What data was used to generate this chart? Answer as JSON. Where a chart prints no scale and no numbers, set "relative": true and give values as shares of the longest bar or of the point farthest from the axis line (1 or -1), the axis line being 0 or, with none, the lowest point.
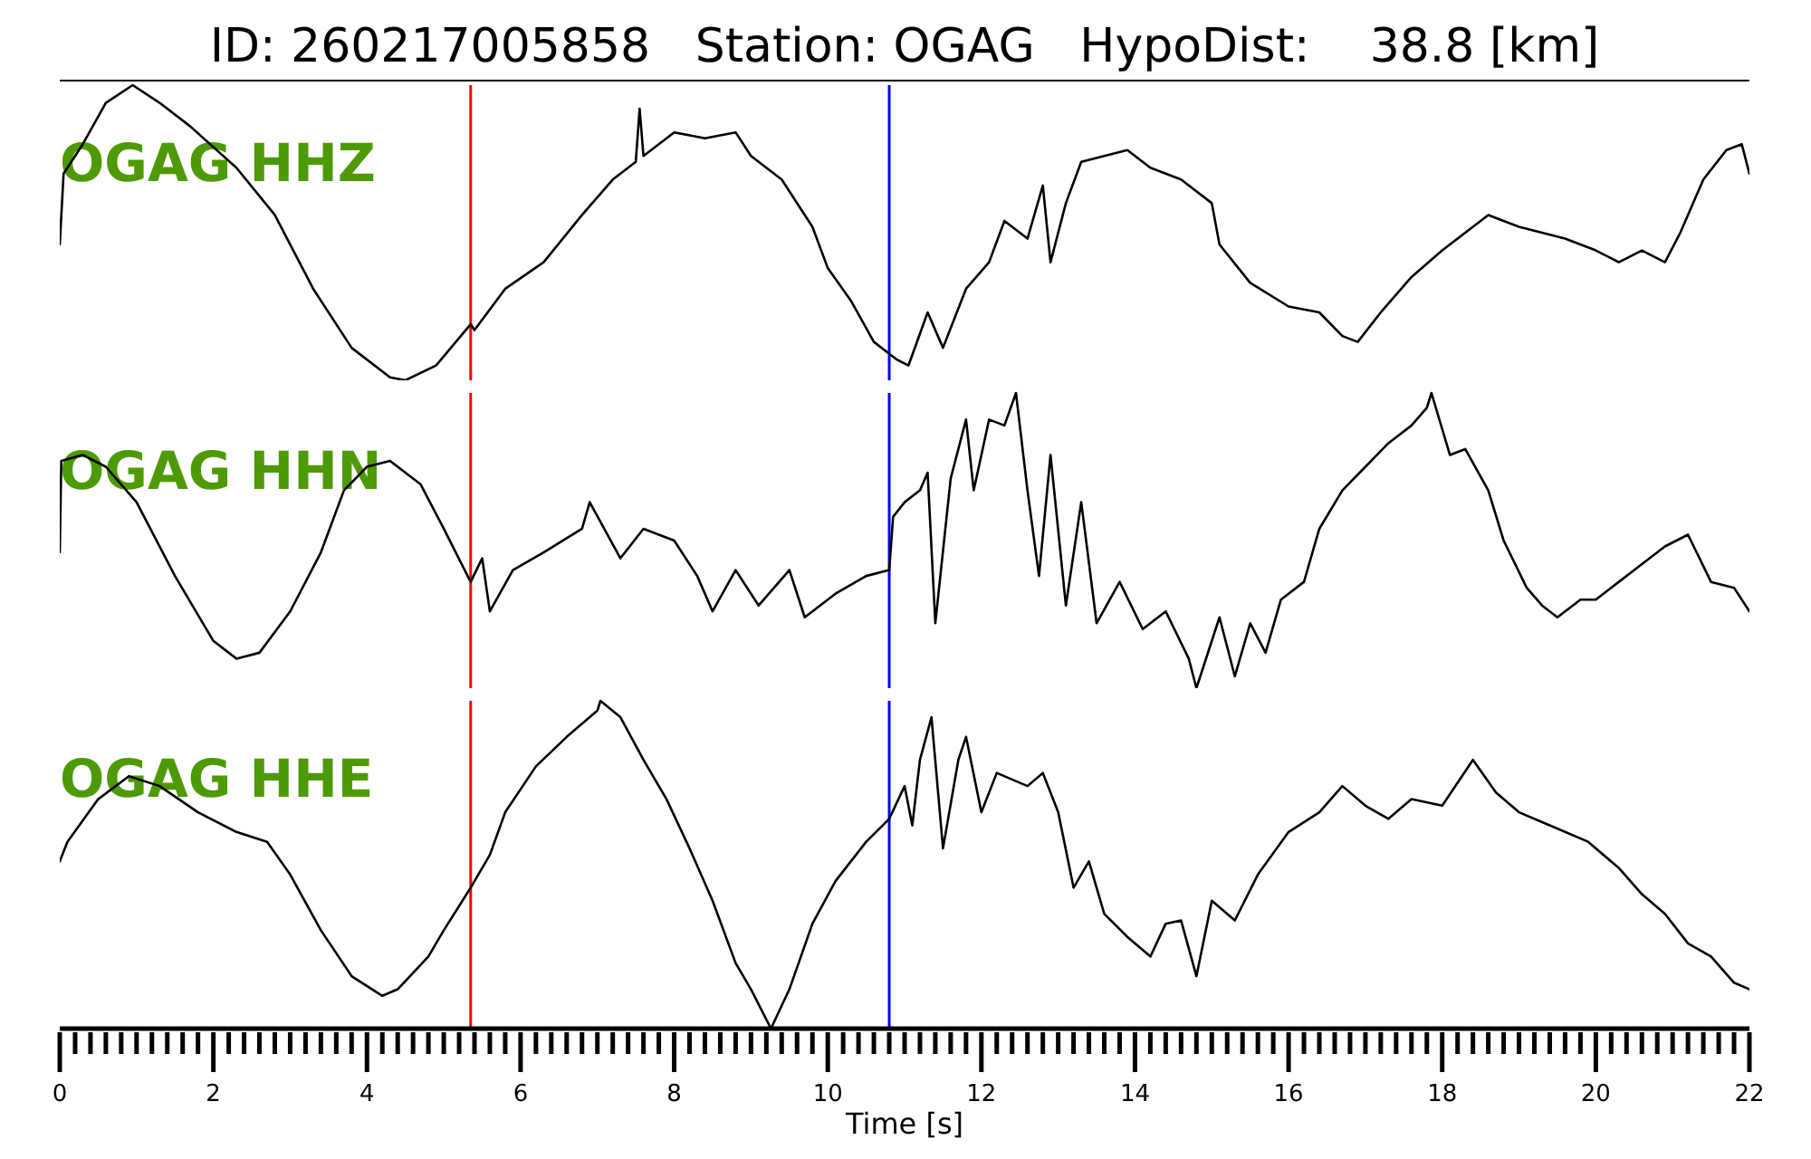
{
  "chart_data": [
    {
      "type": "line",
      "title": "ID: 260217005858   Station: OGAG   HypoDist:    38.8 [km]",
      "relative": true,
      "xlim": [
        0,
        22
      ],
      "tick_labels": false,
      "marker": "none",
      "line_style": "solid",
      "ref_lines": [
        {
          "axis": "x",
          "value": 5.35,
          "color": "#ff0000"
        },
        {
          "axis": "x",
          "value": 10.8,
          "color": "#0000ff"
        }
      ],
      "series": [
        {
          "name": "OGAG HHZ",
          "color": "#000000",
          "x": [
            0,
            0.05,
            0.3,
            0.6,
            0.95,
            1.3,
            1.7,
            2.3,
            2.8,
            3.3,
            3.8,
            4.3,
            4.5,
            4.9,
            5.35,
            5.4,
            5.8,
            6.3,
            6.8,
            7.2,
            7.5,
            7.55,
            7.6,
            8.0,
            8.4,
            8.8,
            9.0,
            9.4,
            9.8,
            10.0,
            10.3,
            10.6,
            10.9,
            11.05,
            11.3,
            11.5,
            11.8,
            12.1,
            12.3,
            12.6,
            12.8,
            12.9,
            13.1,
            13.3,
            13.6,
            13.9,
            14.2,
            14.6,
            15.0,
            15.1,
            15.5,
            16.0,
            16.4,
            16.7,
            16.9,
            17.2,
            17.6,
            18.0,
            18.4,
            18.6,
            19.0,
            19.6,
            20.0,
            20.3,
            20.6,
            20.9,
            21.1,
            21.4,
            21.7,
            21.9,
            22.0
          ],
          "values": [
            0.46,
            0.7,
            0.8,
            0.94,
            1.0,
            0.94,
            0.86,
            0.72,
            0.56,
            0.31,
            0.11,
            0.01,
            0,
            0.05,
            0.19,
            0.17,
            0.31,
            0.4,
            0.56,
            0.68,
            0.74,
            0.92,
            0.76,
            0.84,
            0.82,
            0.84,
            0.76,
            0.68,
            0.52,
            0.38,
            0.27,
            0.13,
            0.07,
            0.05,
            0.23,
            0.11,
            0.31,
            0.4,
            0.54,
            0.48,
            0.66,
            0.4,
            0.6,
            0.74,
            0.76,
            0.78,
            0.72,
            0.68,
            0.6,
            0.46,
            0.33,
            0.25,
            0.23,
            0.15,
            0.13,
            0.23,
            0.35,
            0.44,
            0.52,
            0.56,
            0.52,
            0.48,
            0.44,
            0.4,
            0.44,
            0.4,
            0.5,
            0.68,
            0.78,
            0.8,
            0.7
          ]
        }
      ]
    },
    {
      "type": "line",
      "relative": true,
      "xlim": [
        0,
        22
      ],
      "tick_labels": false,
      "marker": "none",
      "line_style": "solid",
      "ref_lines": [
        {
          "axis": "x",
          "value": 5.35,
          "color": "#ff0000"
        },
        {
          "axis": "x",
          "value": 10.8,
          "color": "#0000ff"
        }
      ],
      "series": [
        {
          "name": "OGAG HHN",
          "color": "#000000",
          "x": [
            0,
            0.02,
            0.3,
            0.6,
            1.0,
            1.5,
            2.0,
            2.3,
            2.6,
            3.0,
            3.4,
            3.7,
            4.0,
            4.3,
            4.7,
            5.0,
            5.35,
            5.5,
            5.6,
            5.9,
            6.3,
            6.8,
            6.9,
            7.3,
            7.6,
            8.0,
            8.3,
            8.5,
            8.8,
            9.1,
            9.5,
            9.7,
            10.1,
            10.5,
            10.8,
            10.85,
            11.0,
            11.2,
            11.3,
            11.4,
            11.6,
            11.8,
            11.9,
            12.1,
            12.3,
            12.45,
            12.6,
            12.75,
            12.9,
            13.1,
            13.3,
            13.5,
            13.8,
            14.1,
            14.4,
            14.7,
            14.8,
            15.1,
            15.3,
            15.5,
            15.7,
            15.9,
            16.2,
            16.4,
            16.7,
            17.0,
            17.3,
            17.6,
            17.8,
            17.86,
            18.1,
            18.3,
            18.6,
            18.8,
            19.1,
            19.3,
            19.5,
            19.8,
            20.0,
            20.3,
            20.6,
            20.9,
            21.2,
            21.5,
            21.8,
            22.0
          ],
          "values": [
            0.46,
            0.77,
            0.79,
            0.75,
            0.63,
            0.38,
            0.16,
            0.1,
            0.12,
            0.26,
            0.46,
            0.67,
            0.75,
            0.77,
            0.69,
            0.54,
            0.36,
            0.44,
            0.26,
            0.4,
            0.46,
            0.54,
            0.63,
            0.44,
            0.54,
            0.5,
            0.38,
            0.26,
            0.4,
            0.28,
            0.4,
            0.24,
            0.32,
            0.38,
            0.4,
            0.58,
            0.63,
            0.67,
            0.73,
            0.22,
            0.71,
            0.91,
            0.67,
            0.91,
            0.89,
            1.0,
            0.67,
            0.38,
            0.79,
            0.28,
            0.63,
            0.22,
            0.36,
            0.2,
            0.26,
            0.1,
            0,
            0.24,
            0.04,
            0.22,
            0.12,
            0.3,
            0.36,
            0.54,
            0.67,
            0.75,
            0.83,
            0.89,
            0.95,
            1.0,
            0.79,
            0.81,
            0.67,
            0.5,
            0.34,
            0.28,
            0.24,
            0.3,
            0.3,
            0.36,
            0.42,
            0.48,
            0.52,
            0.36,
            0.34,
            0.26
          ]
        }
      ]
    },
    {
      "type": "line",
      "relative": true,
      "xlim": [
        0,
        22
      ],
      "tick_labels": "x",
      "xlabel": "Time [s]",
      "marker": "none",
      "line_style": "solid",
      "xticks": [
        0,
        {
          "value": 0.2,
          "label": null
        },
        {
          "value": 0.4,
          "label": null
        },
        {
          "value": 0.6,
          "label": null
        },
        {
          "value": 0.8,
          "label": null
        },
        {
          "value": 1,
          "label": null
        },
        {
          "value": 1.2,
          "label": null
        },
        {
          "value": 1.4,
          "label": null
        },
        {
          "value": 1.6,
          "label": null
        },
        {
          "value": 1.8,
          "label": null
        },
        2,
        {
          "value": 2.2,
          "label": null
        },
        {
          "value": 2.4,
          "label": null
        },
        {
          "value": 2.6,
          "label": null
        },
        {
          "value": 2.8,
          "label": null
        },
        {
          "value": 3,
          "label": null
        },
        {
          "value": 3.2,
          "label": null
        },
        {
          "value": 3.4,
          "label": null
        },
        {
          "value": 3.6,
          "label": null
        },
        {
          "value": 3.8,
          "label": null
        },
        4,
        {
          "value": 4.2,
          "label": null
        },
        {
          "value": 4.4,
          "label": null
        },
        {
          "value": 4.6,
          "label": null
        },
        {
          "value": 4.8,
          "label": null
        },
        {
          "value": 5,
          "label": null
        },
        {
          "value": 5.2,
          "label": null
        },
        {
          "value": 5.4,
          "label": null
        },
        {
          "value": 5.6,
          "label": null
        },
        {
          "value": 5.8,
          "label": null
        },
        6,
        {
          "value": 6.2,
          "label": null
        },
        {
          "value": 6.4,
          "label": null
        },
        {
          "value": 6.6,
          "label": null
        },
        {
          "value": 6.8,
          "label": null
        },
        {
          "value": 7,
          "label": null
        },
        {
          "value": 7.2,
          "label": null
        },
        {
          "value": 7.4,
          "label": null
        },
        {
          "value": 7.6,
          "label": null
        },
        {
          "value": 7.8,
          "label": null
        },
        8,
        {
          "value": 8.2,
          "label": null
        },
        {
          "value": 8.4,
          "label": null
        },
        {
          "value": 8.6,
          "label": null
        },
        {
          "value": 8.8,
          "label": null
        },
        {
          "value": 9,
          "label": null
        },
        {
          "value": 9.2,
          "label": null
        },
        {
          "value": 9.4,
          "label": null
        },
        {
          "value": 9.6,
          "label": null
        },
        {
          "value": 9.8,
          "label": null
        },
        10,
        {
          "value": 10.2,
          "label": null
        },
        {
          "value": 10.4,
          "label": null
        },
        {
          "value": 10.6,
          "label": null
        },
        {
          "value": 10.8,
          "label": null
        },
        {
          "value": 11,
          "label": null
        },
        {
          "value": 11.2,
          "label": null
        },
        {
          "value": 11.4,
          "label": null
        },
        {
          "value": 11.6,
          "label": null
        },
        {
          "value": 11.8,
          "label": null
        },
        12,
        {
          "value": 12.2,
          "label": null
        },
        {
          "value": 12.4,
          "label": null
        },
        {
          "value": 12.6,
          "label": null
        },
        {
          "value": 12.8,
          "label": null
        },
        {
          "value": 13,
          "label": null
        },
        {
          "value": 13.2,
          "label": null
        },
        {
          "value": 13.4,
          "label": null
        },
        {
          "value": 13.6,
          "label": null
        },
        {
          "value": 13.8,
          "label": null
        },
        14,
        {
          "value": 14.2,
          "label": null
        },
        {
          "value": 14.4,
          "label": null
        },
        {
          "value": 14.6,
          "label": null
        },
        {
          "value": 14.8,
          "label": null
        },
        {
          "value": 15,
          "label": null
        },
        {
          "value": 15.2,
          "label": null
        },
        {
          "value": 15.4,
          "label": null
        },
        {
          "value": 15.6,
          "label": null
        },
        {
          "value": 15.8,
          "label": null
        },
        16,
        {
          "value": 16.2,
          "label": null
        },
        {
          "value": 16.4,
          "label": null
        },
        {
          "value": 16.6,
          "label": null
        },
        {
          "value": 16.8,
          "label": null
        },
        {
          "value": 17,
          "label": null
        },
        {
          "value": 17.2,
          "label": null
        },
        {
          "value": 17.4,
          "label": null
        },
        {
          "value": 17.6,
          "label": null
        },
        {
          "value": 17.8,
          "label": null
        },
        18,
        {
          "value": 18.2,
          "label": null
        },
        {
          "value": 18.4,
          "label": null
        },
        {
          "value": 18.6,
          "label": null
        },
        {
          "value": 18.8,
          "label": null
        },
        {
          "value": 19,
          "label": null
        },
        {
          "value": 19.2,
          "label": null
        },
        {
          "value": 19.4,
          "label": null
        },
        {
          "value": 19.6,
          "label": null
        },
        {
          "value": 19.8,
          "label": null
        },
        20,
        {
          "value": 20.2,
          "label": null
        },
        {
          "value": 20.4,
          "label": null
        },
        {
          "value": 20.6,
          "label": null
        },
        {
          "value": 20.8,
          "label": null
        },
        {
          "value": 21,
          "label": null
        },
        {
          "value": 21.2,
          "label": null
        },
        {
          "value": 21.4,
          "label": null
        },
        {
          "value": 21.6,
          "label": null
        },
        {
          "value": 21.8,
          "label": null
        },
        22
      ],
      "ref_lines": [
        {
          "axis": "x",
          "value": 5.35,
          "color": "#ff0000"
        },
        {
          "axis": "x",
          "value": 10.8,
          "color": "#0000ff"
        }
      ],
      "series": [
        {
          "name": "OGAG HHE",
          "color": "#000000",
          "x": [
            0,
            0.1,
            0.5,
            0.9,
            1.3,
            1.8,
            2.3,
            2.7,
            3.0,
            3.4,
            3.8,
            4.2,
            4.4,
            4.8,
            5.0,
            5.35,
            5.6,
            5.8,
            6.2,
            6.6,
            7.0,
            7.04,
            7.3,
            7.6,
            7.9,
            8.2,
            8.5,
            8.8,
            9.0,
            9.26,
            9.5,
            9.8,
            10.1,
            10.5,
            10.8,
            11.0,
            11.1,
            11.2,
            11.35,
            11.5,
            11.7,
            11.8,
            12.0,
            12.2,
            12.6,
            12.8,
            13.0,
            13.2,
            13.4,
            13.6,
            13.9,
            14.2,
            14.4,
            14.6,
            14.8,
            15.0,
            15.3,
            15.6,
            16.0,
            16.4,
            16.7,
            17.0,
            17.3,
            17.6,
            18.0,
            18.4,
            18.7,
            19.0,
            19.4,
            19.9,
            20.3,
            20.6,
            20.9,
            21.2,
            21.5,
            21.8,
            22.0
          ],
          "values": [
            0.51,
            0.57,
            0.7,
            0.77,
            0.74,
            0.66,
            0.6,
            0.57,
            0.47,
            0.3,
            0.16,
            0.1,
            0.12,
            0.22,
            0.3,
            0.43,
            0.53,
            0.66,
            0.8,
            0.89,
            0.97,
            1.0,
            0.95,
            0.82,
            0.7,
            0.55,
            0.39,
            0.2,
            0.12,
            0,
            0.12,
            0.32,
            0.45,
            0.57,
            0.64,
            0.74,
            0.62,
            0.82,
            0.95,
            0.55,
            0.82,
            0.89,
            0.66,
            0.78,
            0.74,
            0.78,
            0.66,
            0.43,
            0.51,
            0.35,
            0.28,
            0.22,
            0.32,
            0.33,
            0.16,
            0.39,
            0.33,
            0.47,
            0.6,
            0.66,
            0.74,
            0.68,
            0.64,
            0.7,
            0.68,
            0.82,
            0.72,
            0.66,
            0.62,
            0.57,
            0.49,
            0.41,
            0.35,
            0.26,
            0.22,
            0.14,
            0.12
          ]
        }
      ]
    }
  ]
}
